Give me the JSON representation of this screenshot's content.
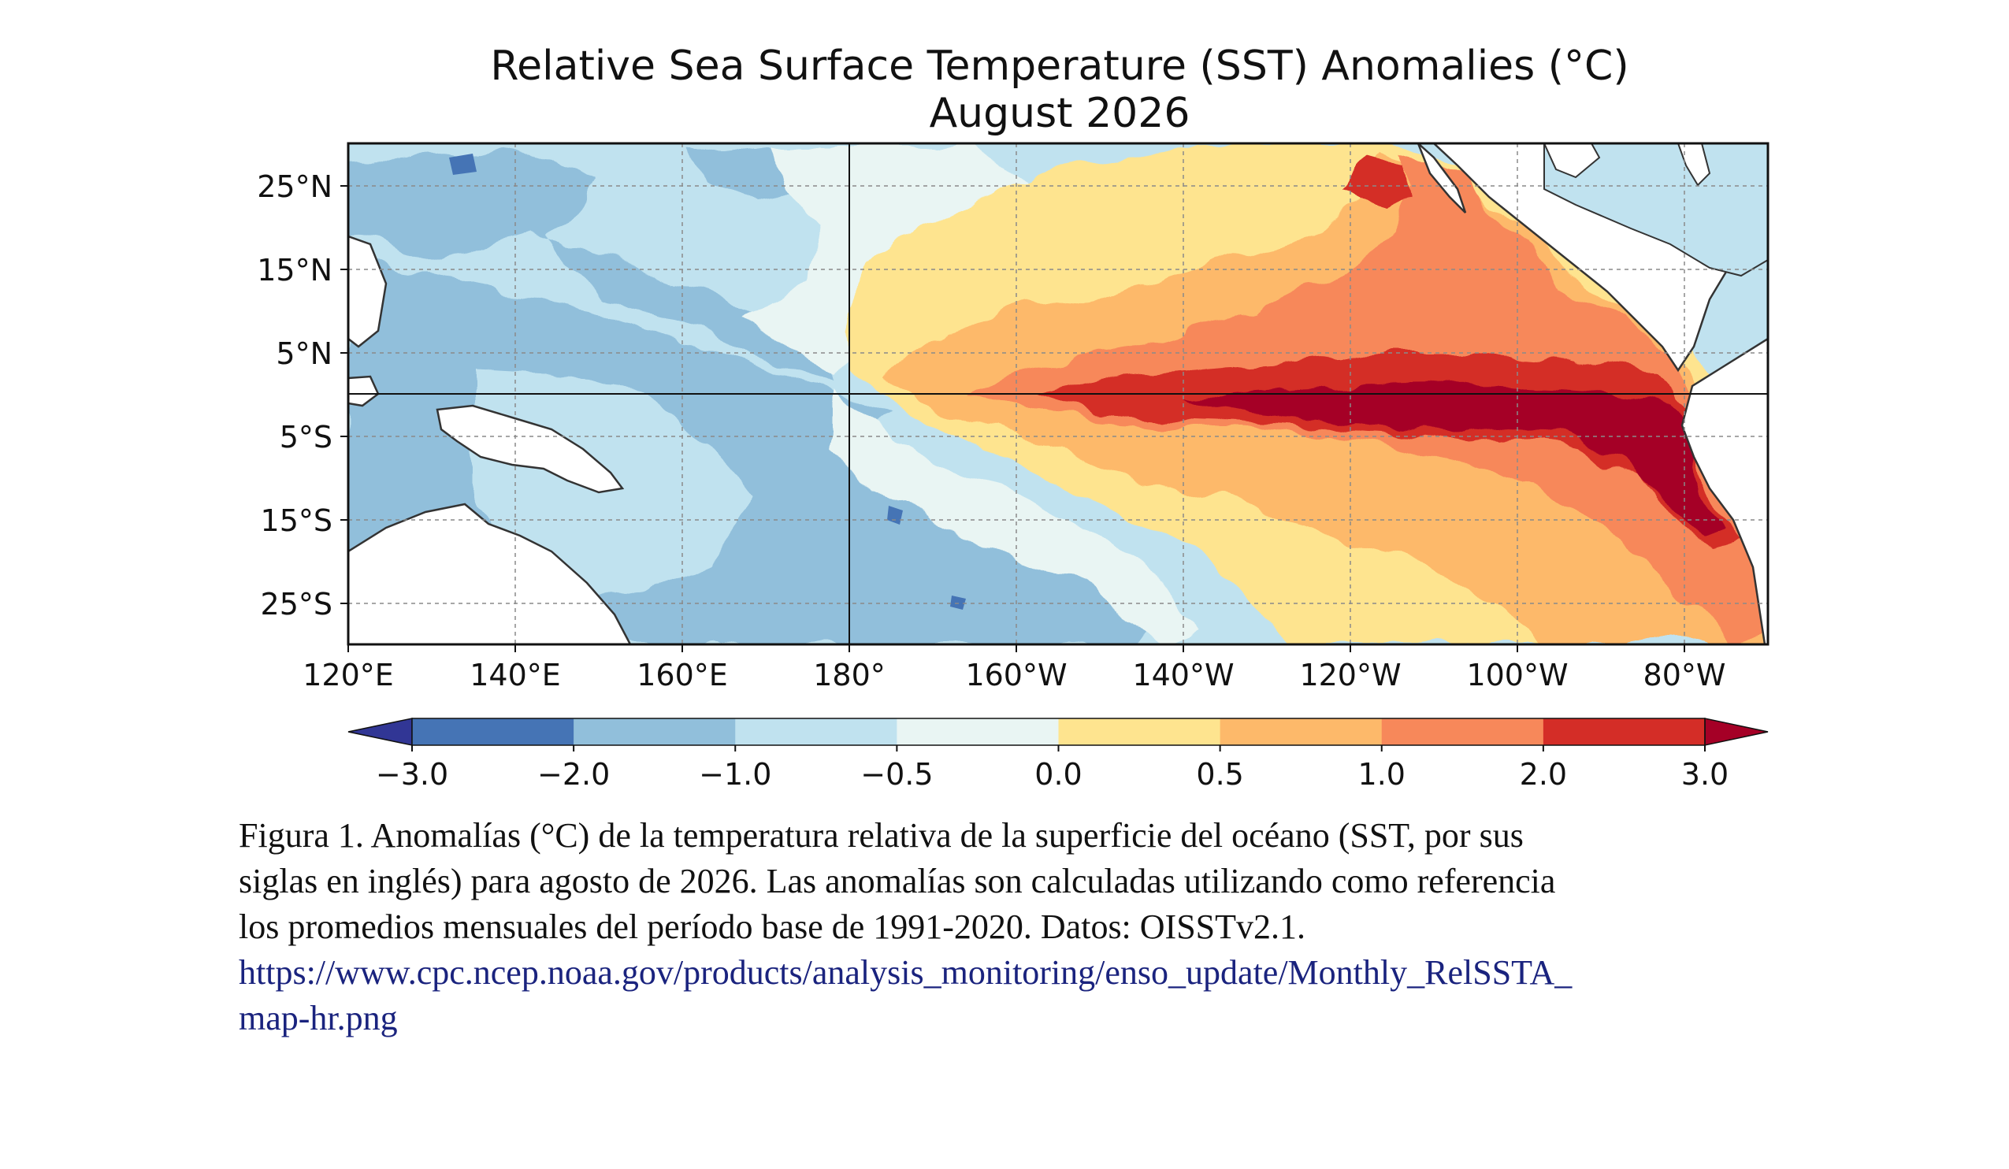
{
  "title": "Relative Sea Surface Temperature (SST) Anomalies (°C)",
  "subtitle": "August 2026",
  "map": {
    "lat_ticks": [
      "25°N",
      "15°N",
      "5°N",
      "5°S",
      "15°S",
      "25°S"
    ],
    "lon_ticks": [
      "120°E",
      "140°E",
      "160°E",
      "180°",
      "160°W",
      "140°W",
      "120°W",
      "100°W",
      "80°W"
    ],
    "colors": {
      "land": "#ffffff",
      "coast": "#333333",
      "grid": "#8a8a8a"
    }
  },
  "colorbar": {
    "tick_labels": [
      "−3.0",
      "−2.0",
      "−1.0",
      "−0.5",
      "0.0",
      "0.5",
      "1.0",
      "2.0",
      "3.0"
    ],
    "levels": [
      -3.0,
      -2.0,
      -1.0,
      -0.5,
      0.0,
      0.5,
      1.0,
      2.0,
      3.0
    ],
    "colors": [
      "#313695",
      "#4574b5",
      "#91bfdb",
      "#c0e2ef",
      "#e9f5f3",
      "#fee48f",
      "#fdb96a",
      "#f7885a",
      "#d42d27",
      "#a50026"
    ]
  },
  "caption": {
    "line1": "Figura 1. Anomalías (°C) de la temperatura relativa de la superficie del océano (SST, por sus",
    "line2": "siglas en inglés) para agosto de 2026. Las anomalías son calculadas utilizando como referencia",
    "line3": "los promedios mensuales del período base de 1991-2020. Datos: OISSTv2.1.",
    "link1": "https://www.cpc.ncep.noaa.gov/products/analysis_monitoring/enso_update/Monthly_RelSSTA_",
    "link2": "map-hr.png"
  }
}
